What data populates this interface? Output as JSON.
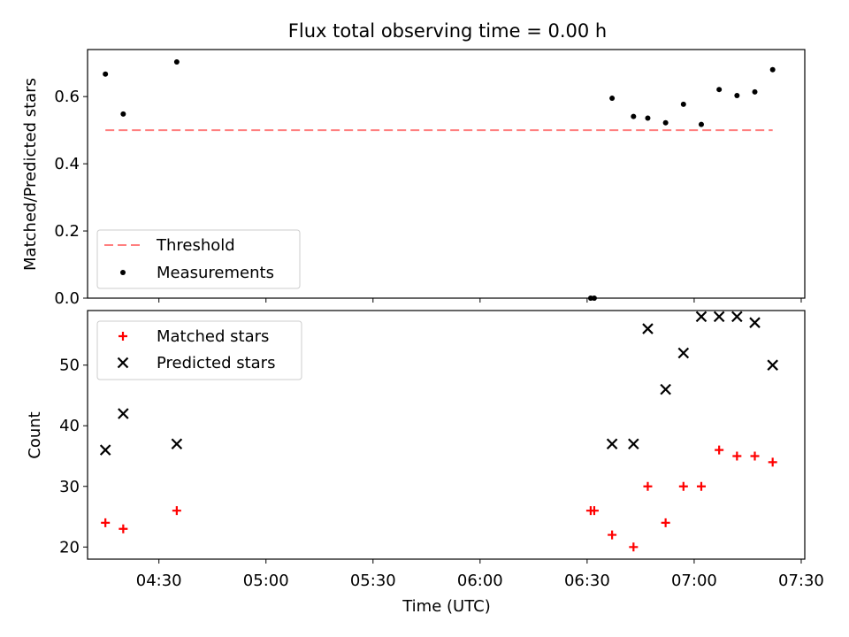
{
  "chart_data": [
    {
      "type": "line",
      "title": "Flux total observing time = 0.00 h",
      "xlabel": "",
      "ylabel": "Matched/Predicted stars",
      "ylim": [
        0,
        0.74
      ],
      "yticks": [
        "0.0",
        "0.2",
        "0.4",
        "0.6"
      ],
      "ytick_values": [
        0,
        0.2,
        0.4,
        0.6
      ],
      "legend_position": "lower left",
      "series": [
        {
          "name": "Threshold",
          "style": "dashed",
          "color": "#ff7f7f",
          "x": [
            "04:15",
            "07:22"
          ],
          "y": [
            0.5,
            0.5
          ]
        },
        {
          "name": "Measurements",
          "style": "dot",
          "color": "#000000",
          "x": [
            "04:15",
            "04:20",
            "04:35",
            "06:31",
            "06:32",
            "06:37",
            "06:43",
            "06:47",
            "06:52",
            "06:57",
            "07:02",
            "07:07",
            "07:12",
            "07:17",
            "07:22"
          ],
          "y": [
            0.667,
            0.548,
            0.703,
            0.0,
            0.0,
            0.595,
            0.541,
            0.536,
            0.522,
            0.577,
            0.517,
            0.621,
            0.603,
            0.614,
            0.68
          ]
        }
      ]
    },
    {
      "type": "scatter",
      "title": "",
      "xlabel": "Time (UTC)",
      "ylabel": "Count",
      "ylim": [
        18,
        59
      ],
      "yticks": [
        "20",
        "30",
        "40",
        "50"
      ],
      "ytick_values": [
        20,
        30,
        40,
        50
      ],
      "xlim": [
        "04:10",
        "07:31"
      ],
      "xticks": [
        "04:30",
        "05:00",
        "05:30",
        "06:00",
        "06:30",
        "07:00",
        "07:30"
      ],
      "legend_position": "upper left",
      "series": [
        {
          "name": "Matched stars",
          "marker": "+",
          "color": "#ff0000",
          "x": [
            "04:15",
            "04:20",
            "04:35",
            "06:31",
            "06:32",
            "06:37",
            "06:43",
            "06:47",
            "06:52",
            "06:57",
            "07:02",
            "07:07",
            "07:12",
            "07:17",
            "07:22"
          ],
          "y": [
            24,
            23,
            26,
            26,
            26,
            22,
            20,
            30,
            24,
            30,
            30,
            36,
            35,
            35,
            34
          ]
        },
        {
          "name": "Predicted stars",
          "marker": "x",
          "color": "#000000",
          "x": [
            "04:15",
            "04:20",
            "04:35",
            "06:37",
            "06:43",
            "06:47",
            "06:52",
            "06:57",
            "07:02",
            "07:07",
            "07:12",
            "07:17",
            "07:22"
          ],
          "y": [
            36,
            42,
            37,
            37,
            37,
            56,
            46,
            52,
            58,
            58,
            58,
            57,
            50
          ]
        }
      ]
    }
  ]
}
